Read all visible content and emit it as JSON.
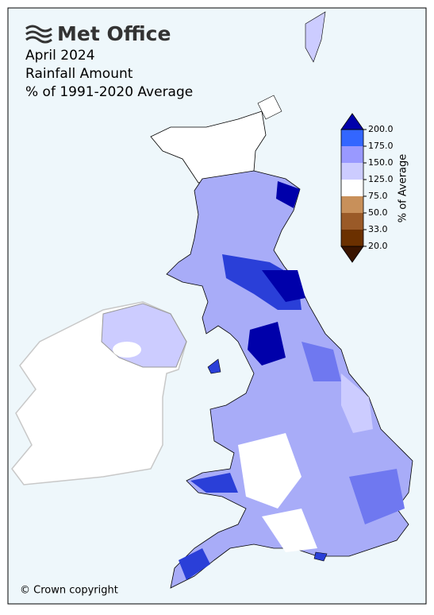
{
  "logo": "Met Office",
  "title_lines": [
    "April 2024",
    "Rainfall Amount",
    "% of 1991-2020 Average"
  ],
  "colorbar": {
    "label": "% of Average",
    "ticks": [
      {
        "value": 20,
        "label": "20.0"
      },
      {
        "value": 33,
        "label": "33.0"
      },
      {
        "value": 50,
        "label": "50.0"
      },
      {
        "value": 75,
        "label": "75.0"
      },
      {
        "value": 125,
        "label": "125.0"
      },
      {
        "value": 150,
        "label": "150.0"
      },
      {
        "value": 175,
        "label": "175.0"
      },
      {
        "value": 200,
        "label": "200.0"
      }
    ],
    "colors": [
      "#3a1400",
      "#6b3000",
      "#9a5a28",
      "#c8905a",
      "#ffffff",
      "#ccccff",
      "#9999ff",
      "#3366ff",
      "#0000aa"
    ]
  },
  "copyright": "© Crown copyright"
}
